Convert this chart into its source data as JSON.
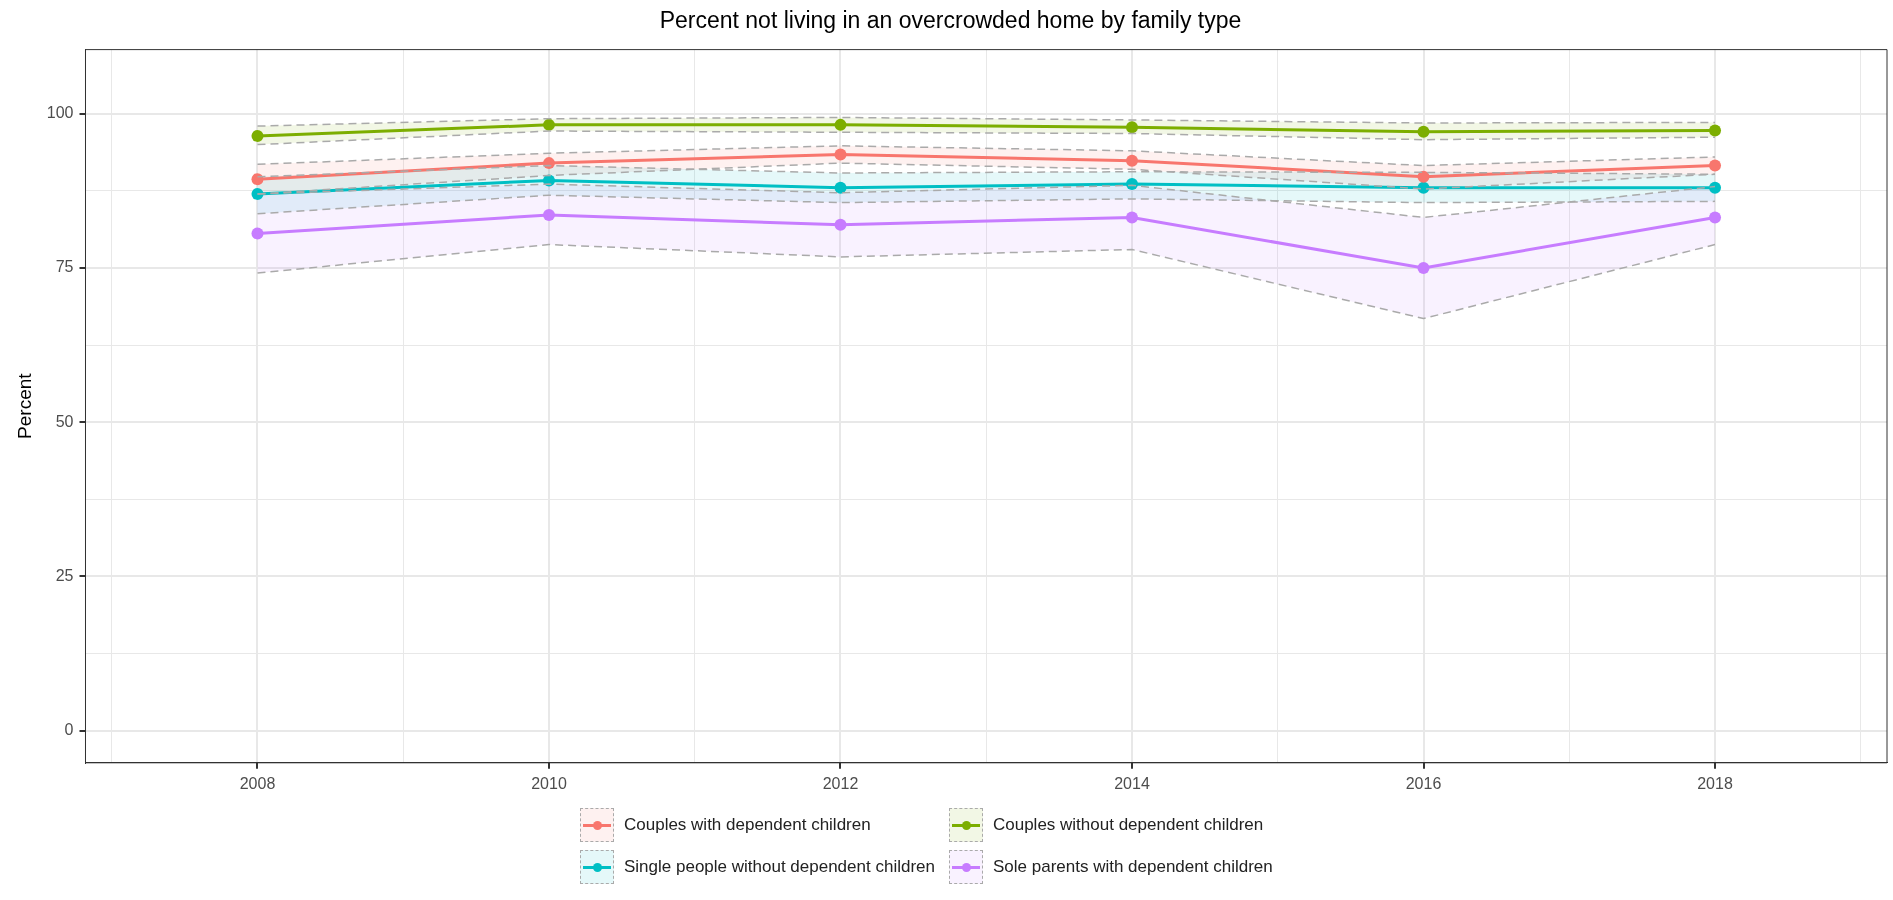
{
  "chart_data": {
    "type": "line",
    "title": "Percent not living in an overcrowded home by family type",
    "ylabel": "Percent",
    "x": [
      2008,
      2010,
      2012,
      2014,
      2016,
      2018
    ],
    "xlim": [
      2006.82,
      2019.18
    ],
    "xticks": [
      {
        "value": 2007,
        "label": null
      },
      2008,
      {
        "value": 2009,
        "label": null
      },
      2010,
      {
        "value": 2011,
        "label": null
      },
      2012,
      {
        "value": 2013,
        "label": null
      },
      2014,
      {
        "value": 2015,
        "label": null
      },
      2016,
      {
        "value": 2017,
        "label": null
      },
      2018,
      {
        "value": 2019,
        "label": null
      }
    ],
    "ylim": [
      -5.2,
      110.4
    ],
    "yticks": [
      0,
      {
        "value": 12.5,
        "label": null
      },
      25,
      {
        "value": 37.5,
        "label": null
      },
      50,
      {
        "value": 62.5,
        "label": null
      },
      75,
      {
        "value": 87.5,
        "label": null
      },
      100
    ],
    "grid": true,
    "legend": "bottom",
    "marker": "circle",
    "line_style": "solid",
    "series": [
      {
        "color": "#aaaaaa",
        "line_style": "dashed",
        "marker": "none",
        "values": [
          87,
          90,
          92,
          91,
          87.8,
          90.2
        ]
      },
      {
        "color": "#aaaaaa",
        "line_style": "dashed",
        "marker": "none",
        "values": [
          91.8,
          93.6,
          94.8,
          94,
          91.6,
          93
        ]
      },
      {
        "color": "#aaaaaa",
        "line_style": "dashed",
        "marker": "none",
        "values": [
          95,
          97.2,
          97,
          96.8,
          95.8,
          96.2
        ]
      },
      {
        "color": "#aaaaaa",
        "line_style": "dashed",
        "marker": "none",
        "values": [
          98,
          99.2,
          99.4,
          99,
          98.5,
          98.6
        ]
      },
      {
        "color": "#aaaaaa",
        "line_style": "dashed",
        "marker": "none",
        "values": [
          83.8,
          86.8,
          85.6,
          86.2,
          85.6,
          85.8
        ]
      },
      {
        "color": "#aaaaaa",
        "line_style": "dashed",
        "marker": "none",
        "values": [
          89.8,
          91.6,
          90.4,
          90.6,
          90.5,
          90.2
        ]
      },
      {
        "color": "#aaaaaa",
        "line_style": "dashed",
        "marker": "none",
        "values": [
          74.2,
          78.8,
          76.8,
          78,
          66.8,
          78.8
        ]
      },
      {
        "color": "#aaaaaa",
        "line_style": "dashed",
        "marker": "none",
        "values": [
          87,
          88.6,
          87.2,
          88.4,
          83.2,
          88.2
        ]
      },
      {
        "name": "Couples with dependent children",
        "color": "#f8766d",
        "values": [
          89.4,
          92,
          93.4,
          92.4,
          89.8,
          91.6
        ],
        "lower": [
          87,
          90,
          92,
          91,
          87.8,
          90.2
        ],
        "upper": [
          91.8,
          93.6,
          94.8,
          94,
          91.6,
          93
        ]
      },
      {
        "name": "Couples without dependent children",
        "color": "#7cae00",
        "values": [
          96.4,
          98.2,
          98.2,
          97.8,
          97.1,
          97.3
        ],
        "lower": [
          95,
          97.2,
          97,
          96.8,
          95.8,
          96.2
        ],
        "upper": [
          98,
          99.2,
          99.4,
          99,
          98.5,
          98.6
        ]
      },
      {
        "name": "Single people without dependent children",
        "color": "#00bfc4",
        "values": [
          87,
          89.2,
          88,
          88.6,
          88,
          88
        ],
        "lower": [
          83.8,
          86.8,
          85.6,
          86.2,
          85.6,
          85.8
        ],
        "upper": [
          89.8,
          91.6,
          90.4,
          90.6,
          90.5,
          90.2
        ]
      },
      {
        "name": "Sole parents with dependent children",
        "color": "#c77cff",
        "values": [
          80.6,
          83.6,
          82,
          83.2,
          75,
          83.2
        ],
        "lower": [
          74.2,
          78.8,
          76.8,
          78,
          66.8,
          78.8
        ],
        "upper": [
          87,
          88.6,
          87.2,
          88.4,
          83.2,
          88.2
        ]
      }
    ]
  }
}
